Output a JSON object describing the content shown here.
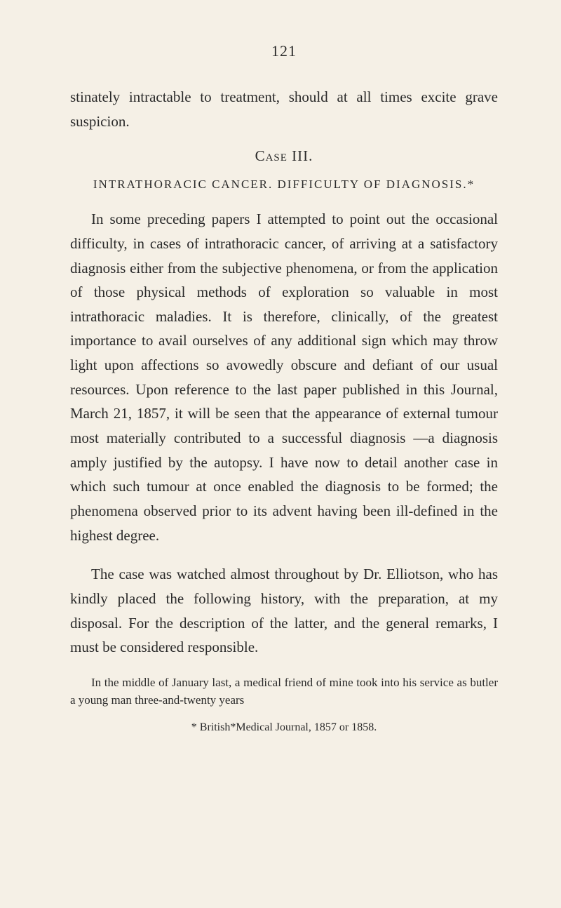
{
  "page_number": "121",
  "para1": "stinately intractable to treatment, should at all times excite grave suspicion.",
  "case_heading": "Case III.",
  "section_heading": "INTRATHORACIC CANCER.  DIFFICULTY OF DIAGNOSIS.*",
  "para2": "In some preceding papers I attempted to point out the occasional difficulty, in cases of intrathoracic cancer, of arriving at a satisfactory diagnosis either from the subjective phenomena, or from the application of those physical methods of exploration so valuable in most intrathoracic maladies. It is therefore, clinically, of the greatest importance to avail ourselves of any additional sign which may throw light upon affections so avowedly obscure and defiant of our usual resources. Upon reference to the last paper published in this Journal, March 21, 1857, it will be seen that the appearance of external tumour most materially contributed to a successful diagnosis —a diagnosis amply justified by the autopsy. I have now to detail another case in which such tumour at once enabled the diagnosis to be formed; the phenomena observed prior to its advent having been ill-defined in the highest degree.",
  "para3": "The case was watched almost throughout by Dr. Elliotson, who has kindly placed the following history, with the preparation, at my disposal. For the description of the latter, and the general remarks, I must be considered responsible.",
  "para4": "In the middle of January last, a medical friend of mine took into his service as butler a young man three-and-twenty years",
  "footnote": "* British*Medical Journal, 1857 or 1858."
}
